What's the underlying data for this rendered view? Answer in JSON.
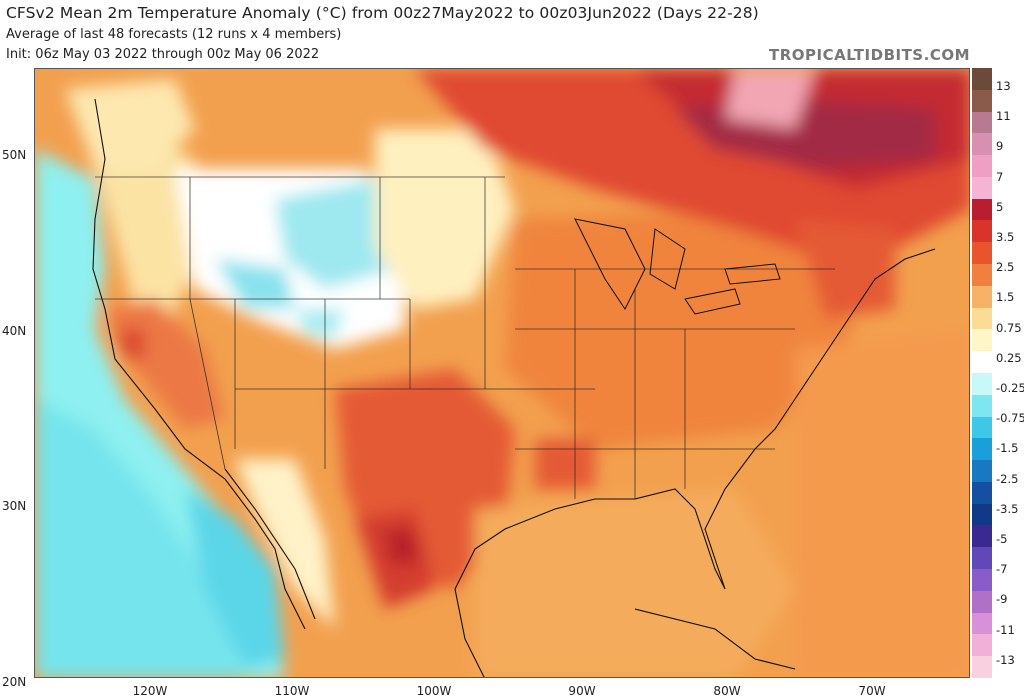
{
  "header": {
    "title": "CFSv2 Mean 2m Temperature Anomaly (°C) from 00z27May2022 to 00z03Jun2022 (Days 22-28)",
    "subtitle": "Average of last 48 forecasts (12 runs x 4 members)",
    "init": "Init: 06z May 03 2022 through 00z May 06 2022",
    "brand": "TROPICALTIDBITS.COM"
  },
  "axes": {
    "lat_labels": [
      "50N",
      "40N",
      "30N",
      "20N"
    ],
    "lon_labels": [
      "120W",
      "110W",
      "100W",
      "90W",
      "80W",
      "70W"
    ]
  },
  "colorbar": {
    "labels": [
      "13",
      "11",
      "9",
      "7",
      "5",
      "3.5",
      "2.5",
      "1.5",
      "0.75",
      "0.25",
      "-0.25",
      "-0.75",
      "-1.5",
      "-2.5",
      "-3.5",
      "-5",
      "-7",
      "-9",
      "-11",
      "-13"
    ],
    "colors": [
      "#6b4a3a",
      "#8a5a4a",
      "#b87a90",
      "#d890b0",
      "#ef9ec4",
      "#f6b4d4",
      "#b81e2e",
      "#d8342c",
      "#e8542c",
      "#f08040",
      "#f6b266",
      "#fbdc96",
      "#fff6c8",
      "#ffffff",
      "#c8f8f8",
      "#7ee6f0",
      "#3ec8e8",
      "#1aa0d8",
      "#1878c0",
      "#1450a0",
      "#103a88",
      "#3a2a90",
      "#6048b8",
      "#8a5cc8",
      "#b070c8",
      "#d890d8",
      "#f0b0d8",
      "#f8d0e0"
    ]
  }
}
